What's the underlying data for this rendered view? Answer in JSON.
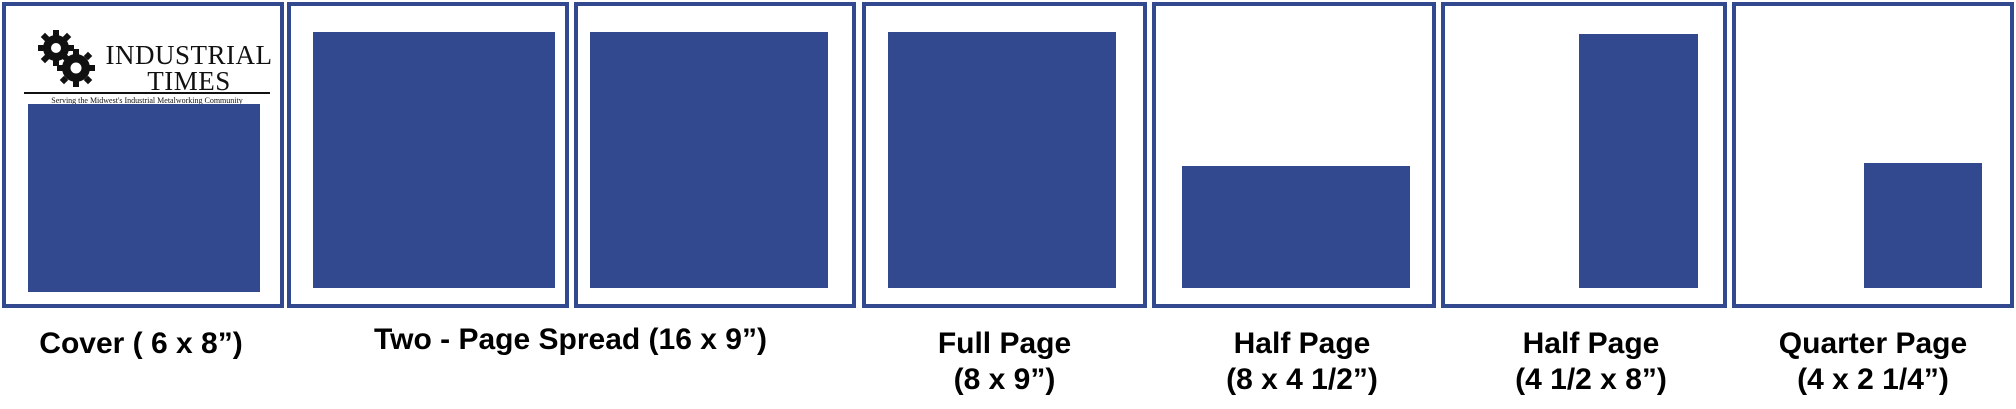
{
  "colors": {
    "accent": "#32498f",
    "frame_border": "#32498f",
    "background": "#ffffff"
  },
  "logo": {
    "icon": "gears-icon",
    "title_line1": "INDUSTRIAL",
    "title_line2": "TIMES",
    "tagline": "Serving the Midwest's Industrial Metalworking Community"
  },
  "ad_sizes": [
    {
      "id": "cover",
      "line1": "Cover ( 6 x 8”)",
      "line2": ""
    },
    {
      "id": "two-page-spread",
      "line1": "Two - Page Spread (16 x 9”)",
      "line2": ""
    },
    {
      "id": "full-page",
      "line1": "Full Page",
      "line2": "(8 x 9”)"
    },
    {
      "id": "half-page-horizontal",
      "line1": "Half Page",
      "line2": "(8 x 4 1/2”)"
    },
    {
      "id": "half-page-vertical",
      "line1": "Half Page",
      "line2": "(4 1/2 x 8”)"
    },
    {
      "id": "quarter-page",
      "line1": "Quarter Page",
      "line2": "(4 x 2 1/4”)"
    }
  ]
}
